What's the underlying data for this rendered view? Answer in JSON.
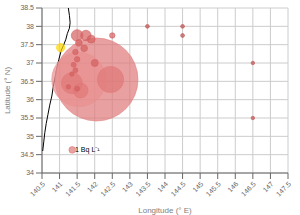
{
  "chart_data": {
    "type": "scatter",
    "xlabel": "Longitude (°  E)",
    "ylabel": "Latitude (°  N)",
    "xlim": [
      140.5,
      147.5
    ],
    "ylim": [
      34.0,
      38.5
    ],
    "xticks": [
      140.5,
      141,
      141.5,
      142,
      142.5,
      143,
      143.5,
      144,
      144.5,
      145,
      145.5,
      146,
      146.5,
      147,
      147.5
    ],
    "yticks": [
      34,
      34.5,
      35,
      35.5,
      36,
      36.5,
      37,
      37.5,
      38,
      38.5
    ],
    "grid": true,
    "series": [
      {
        "type": "line",
        "color": "black",
        "x": [
          141.25,
          141.28,
          141.3,
          141.28,
          141.22,
          141.18,
          141.12,
          141.05,
          140.98,
          140.92,
          140.87,
          140.82,
          140.78,
          140.72,
          140.67,
          140.62,
          140.58,
          140.55,
          140.52
        ],
        "values": [
          38.5,
          38.3,
          38.1,
          37.95,
          37.8,
          37.65,
          37.5,
          37.35,
          37.1,
          36.85,
          36.6,
          36.35,
          36.1,
          35.85,
          35.6,
          35.35,
          35.1,
          34.85,
          34.6
        ]
      },
      {
        "type": "scatter",
        "colors": [
          "#e07878",
          "#e89090",
          "#e07878",
          "#e07878",
          "#e07878"
        ],
        "x": [
          142.05,
          141.55,
          142.45,
          141.35,
          141.6
        ],
        "values": [
          36.55,
          36.55,
          36.55,
          36.45,
          36.25
        ],
        "sizes": [
          2800,
          1200,
          280,
          180,
          90
        ]
      },
      {
        "type": "scatter",
        "colors": [
          "#d46060",
          "#d46060",
          "#d46060",
          "#d46060",
          "#d46060",
          "#d46060",
          "#d46060",
          "#d46060",
          "#d46060",
          "#d46060",
          "#d46060",
          "#d46060",
          "#d46060",
          "#d46060",
          "#c05050",
          "#c05050",
          "#c05050",
          "#c05050",
          "#c05050"
        ],
        "x": [
          141.5,
          141.75,
          141.9,
          141.55,
          141.7,
          141.45,
          141.5,
          141.4,
          141.45,
          141.35,
          141.5,
          141.25,
          142.0,
          142.5,
          143.5,
          144.5,
          144.5,
          146.5,
          146.5
        ],
        "values": [
          37.75,
          37.75,
          37.65,
          37.55,
          37.4,
          37.3,
          37.1,
          36.95,
          36.8,
          36.7,
          36.3,
          36.35,
          37.0,
          37.75,
          38.0,
          38.0,
          37.75,
          37.0,
          35.5
        ],
        "sizes": [
          55,
          45,
          25,
          18,
          18,
          12,
          12,
          10,
          10,
          8,
          10,
          8,
          20,
          12,
          6,
          6,
          6,
          5,
          5
        ]
      },
      {
        "type": "scatter",
        "color": "#FFD700",
        "x": [
          141.03
        ],
        "values": [
          37.42
        ],
        "sizes": [
          28
        ]
      },
      {
        "type": "scatter",
        "color": "#e07878",
        "x": [
          141.36
        ],
        "values": [
          34.63
        ],
        "sizes": [
          18
        ]
      }
    ],
    "annotations": [
      {
        "text": "1 Bq L⁻¹",
        "x": 141.44,
        "y": 34.63
      }
    ]
  }
}
